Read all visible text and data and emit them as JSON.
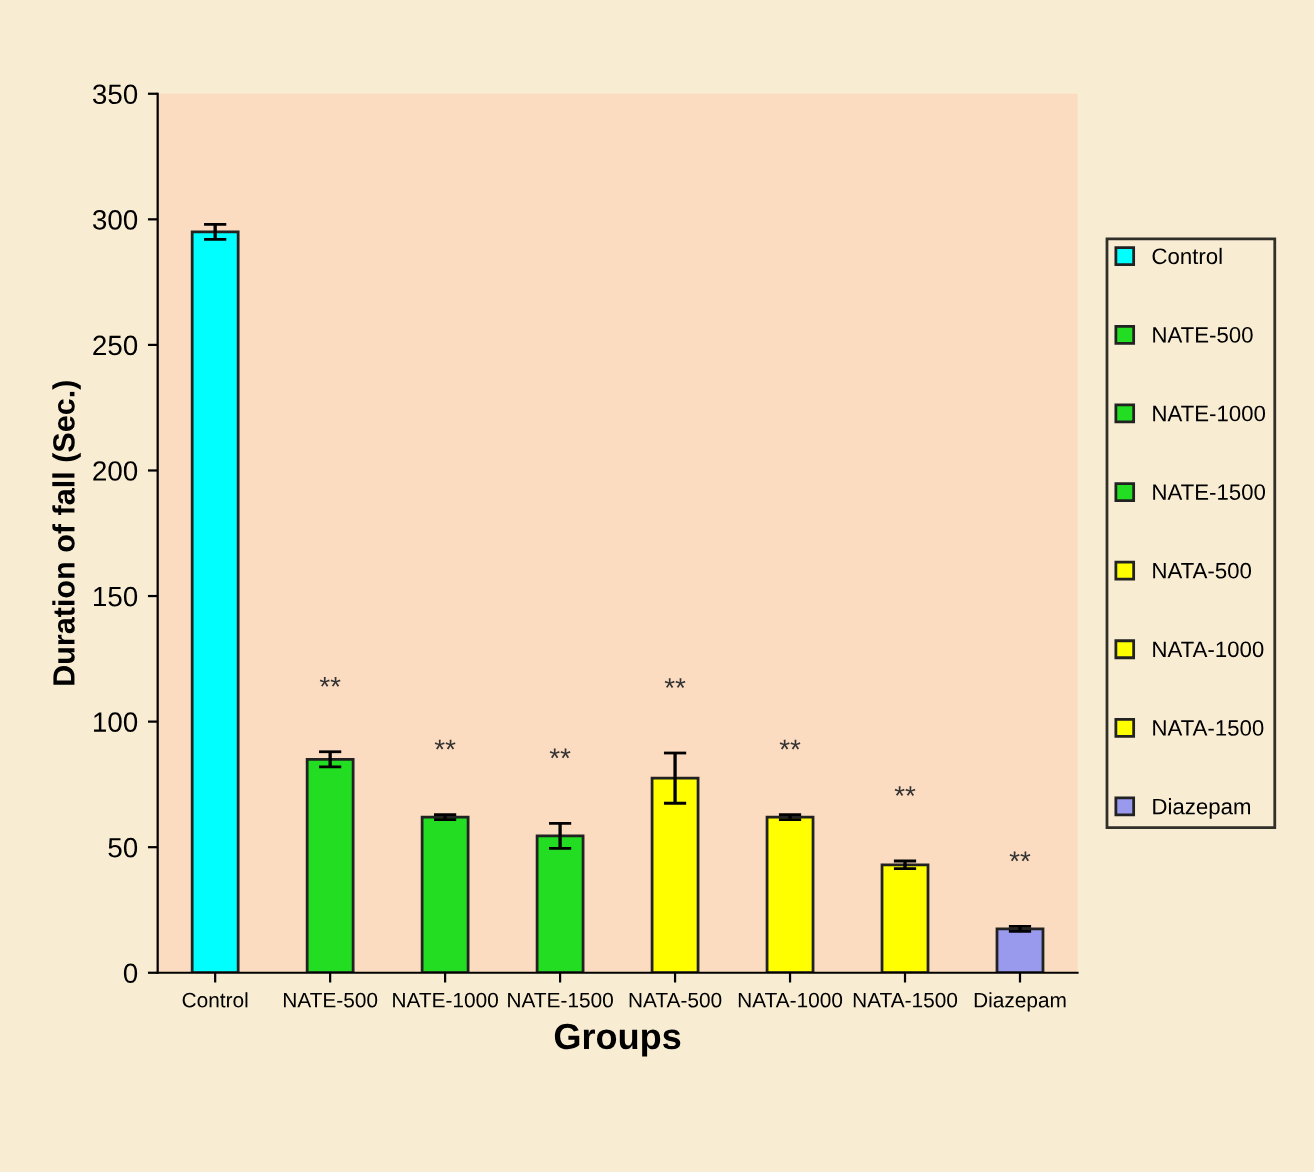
{
  "chart_data": {
    "type": "bar",
    "xlabel": "Groups",
    "ylabel": "Duration of fall (Sec.)",
    "categories": [
      "Control",
      "NATE-500",
      "NATE-1000",
      "NATE-1500",
      "NATA-500",
      "NATA-1000",
      "NATA-1500",
      "Diazepam"
    ],
    "series": [
      {
        "name": "Control",
        "color": "#00ffff",
        "values": [
          295,
          null,
          null,
          null,
          null,
          null,
          null,
          null
        ],
        "errors": [
          3,
          null,
          null,
          null,
          null,
          null,
          null,
          null
        ]
      },
      {
        "name": "NATE-500",
        "color": "#22dd22",
        "values": [
          null,
          85,
          null,
          null,
          null,
          null,
          null,
          null
        ],
        "errors": [
          null,
          3,
          null,
          null,
          null,
          null,
          null,
          null
        ]
      },
      {
        "name": "NATE-1000",
        "color": "#22dd22",
        "values": [
          null,
          null,
          62,
          null,
          null,
          null,
          null,
          null
        ],
        "errors": [
          null,
          null,
          1,
          null,
          null,
          null,
          null,
          null
        ]
      },
      {
        "name": "NATE-1500",
        "color": "#22dd22",
        "values": [
          null,
          null,
          null,
          54.5,
          null,
          null,
          null,
          null
        ],
        "errors": [
          null,
          null,
          null,
          5,
          null,
          null,
          null,
          null
        ]
      },
      {
        "name": "NATA-500",
        "color": "#ffff00",
        "values": [
          null,
          null,
          null,
          null,
          77.5,
          null,
          null,
          null
        ],
        "errors": [
          null,
          null,
          null,
          null,
          10,
          null,
          null,
          null
        ]
      },
      {
        "name": "NATA-1000",
        "color": "#ffff00",
        "values": [
          null,
          null,
          null,
          null,
          null,
          62,
          null,
          null
        ],
        "errors": [
          null,
          null,
          null,
          null,
          null,
          1,
          null,
          null
        ]
      },
      {
        "name": "NATA-1500",
        "color": "#ffff00",
        "values": [
          null,
          null,
          null,
          null,
          null,
          null,
          43,
          null
        ],
        "errors": [
          null,
          null,
          null,
          null,
          null,
          null,
          1.5,
          null
        ]
      },
      {
        "name": "Diazepam",
        "color": "#9999ee",
        "values": [
          null,
          null,
          null,
          null,
          null,
          null,
          null,
          17.5
        ],
        "errors": [
          null,
          null,
          null,
          null,
          null,
          null,
          null,
          1
        ]
      }
    ],
    "annotations": [
      "**",
      "**",
      "**",
      "**",
      "**",
      "**",
      "**"
    ],
    "ylim": [
      0,
      350
    ],
    "yticks": [
      0,
      50,
      100,
      150,
      200,
      250,
      300,
      350
    ],
    "legend": "right",
    "grid": false
  }
}
